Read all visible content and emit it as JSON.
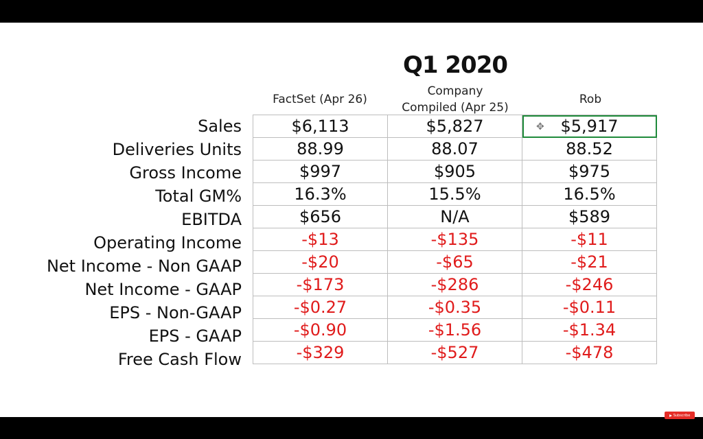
{
  "title": "Q1 2020",
  "columns": [
    "FactSet (Apr 26)",
    "Company\nCompiled (Apr 25)",
    "Rob"
  ],
  "rows": [
    {
      "label": "Sales",
      "values": [
        "$6,113",
        "$5,827",
        "$5,917"
      ],
      "negative": false
    },
    {
      "label": "Deliveries Units",
      "values": [
        "88.99",
        "88.07",
        "88.52"
      ],
      "negative": false
    },
    {
      "label": "Gross Income",
      "values": [
        "$997",
        "$905",
        "$975"
      ],
      "negative": false
    },
    {
      "label": "Total GM%",
      "values": [
        "16.3%",
        "15.5%",
        "16.5%"
      ],
      "negative": false
    },
    {
      "label": "EBITDA",
      "values": [
        "$656",
        "N/A",
        "$589"
      ],
      "negative": false
    },
    {
      "label": "Operating Income",
      "values": [
        "-$13",
        "-$135",
        "-$11"
      ],
      "negative": true
    },
    {
      "label": "Net Income - Non GAAP",
      "values": [
        "-$20",
        "-$65",
        "-$21"
      ],
      "negative": true
    },
    {
      "label": "Net Income - GAAP",
      "values": [
        "-$173",
        "-$286",
        "-$246"
      ],
      "negative": true
    },
    {
      "label": "EPS - Non-GAAP",
      "values": [
        "-$0.27",
        "-$0.35",
        "-$0.11"
      ],
      "negative": true
    },
    {
      "label": "EPS - GAAP",
      "values": [
        "-$0.90",
        "-$1.56",
        "-$1.34"
      ],
      "negative": true
    },
    {
      "label": "Free Cash Flow",
      "values": [
        "-$329",
        "-$527",
        "-$478"
      ],
      "negative": true
    }
  ],
  "selected_cell": {
    "row": 0,
    "col": 2
  },
  "colors": {
    "negative": "#e01b1b",
    "selection": "#1e8a3a",
    "subscribe": "#e52d27"
  },
  "subscribe_label": "Subscribe"
}
